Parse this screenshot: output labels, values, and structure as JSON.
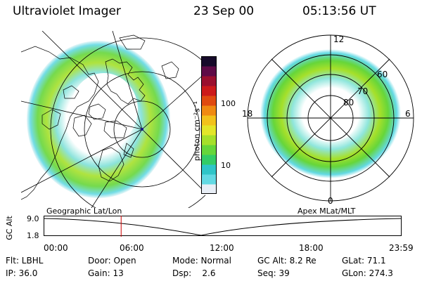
{
  "header": {
    "title": "Ultraviolet Imager",
    "date": "23 Sep 00",
    "time": "05:13:56 UT"
  },
  "left_panel": {
    "caption": "Geographic Lat/Lon"
  },
  "right_panel": {
    "caption": "Apex MLat/MLT",
    "mlt_labels": {
      "top": "12",
      "right": "6",
      "bottom": "0",
      "left": "18"
    },
    "lat_labels": [
      "60",
      "70",
      "80"
    ]
  },
  "colorbar": {
    "unit_label": "photon cm⁻²s⁻¹",
    "tick_labels": [
      "100",
      "10"
    ],
    "colors": [
      "#e8eef6",
      "#63d9e3",
      "#2fc5c8",
      "#33cc66",
      "#66d63a",
      "#a6e02a",
      "#e3e629",
      "#f2c21c",
      "#f08a12",
      "#e04a10",
      "#cc1a1a",
      "#9a0f2e",
      "#5e0a46",
      "#160a2a"
    ]
  },
  "altitude_plot": {
    "ylabel": "GC Alt",
    "ytick_labels": [
      "9.0",
      "1.8"
    ],
    "xtick_labels": [
      "00:00",
      "06:00",
      "12:00",
      "18:00",
      "23:59"
    ],
    "cursor_fraction": 0.217,
    "cursor_color": "#cc0000"
  },
  "info": {
    "row1": [
      "Flt: LBHL",
      "Door: Open",
      "Mode: Normal",
      "GC Alt: 8.2 Re",
      "GLat: 71.1"
    ],
    "row2": [
      "IP: 36.0",
      "Gain: 13",
      "Dsp:    2.6",
      "Seq: 39",
      "GLon: 274.3"
    ]
  }
}
